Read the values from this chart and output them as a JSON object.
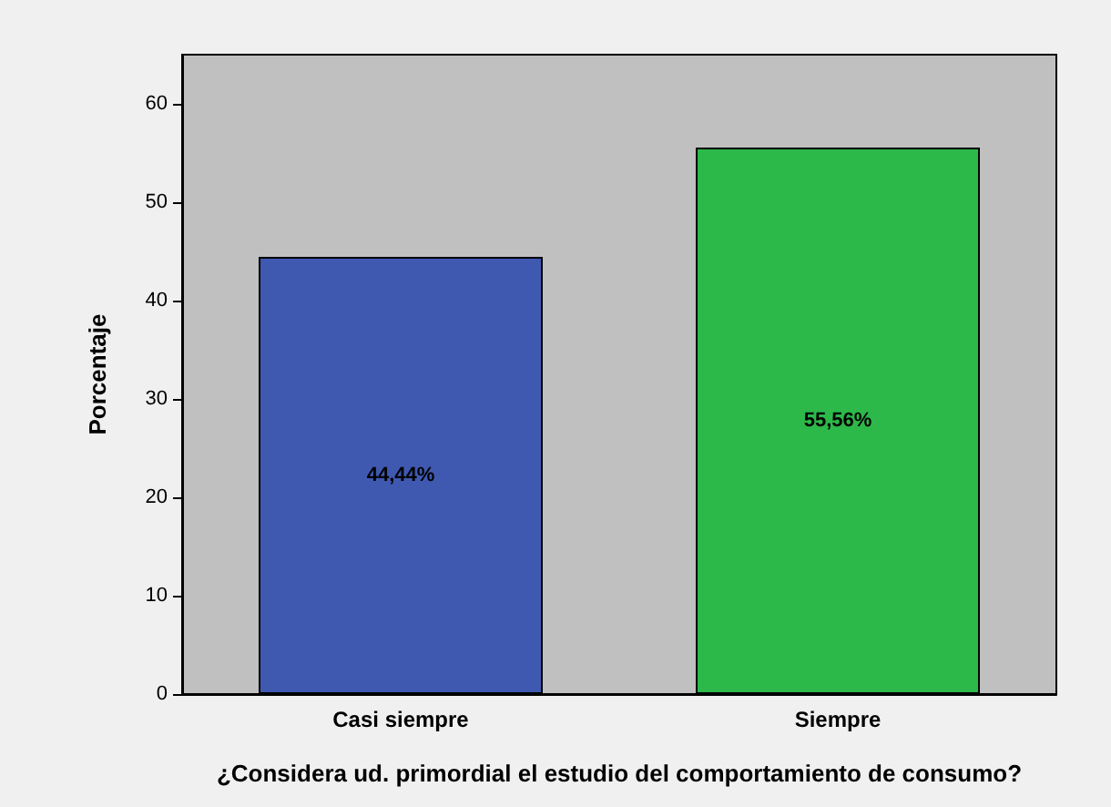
{
  "chart_data": {
    "type": "bar",
    "xlabel": "¿Considera ud. primordial el estudio del comportamiento de consumo?",
    "ylabel": "Porcentaje",
    "categories": [
      "Casi siempre",
      "Siempre"
    ],
    "values": [
      44.44,
      55.56
    ],
    "colors": [
      "#3f58b0",
      "#2db84a"
    ],
    "value_labels": [
      "44,44%",
      "55,56%"
    ],
    "ylim": [
      0,
      65
    ],
    "yticks": [
      0,
      10,
      20,
      30,
      40,
      50,
      60
    ]
  }
}
